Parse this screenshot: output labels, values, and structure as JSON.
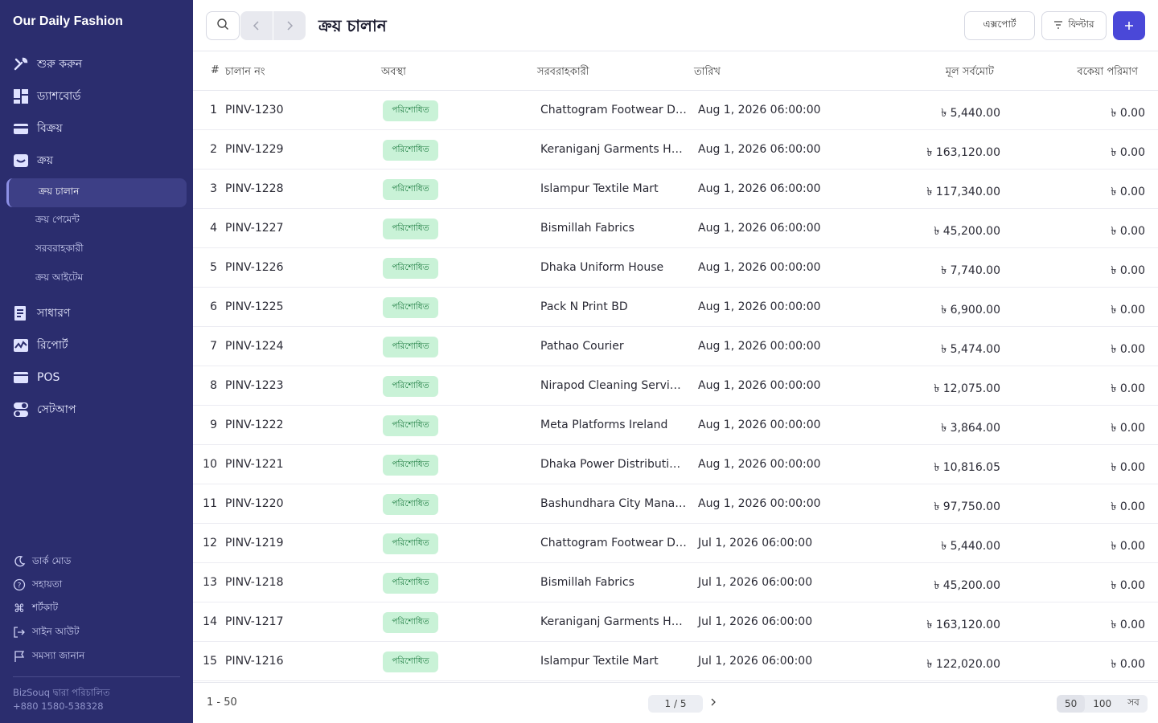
{
  "sidebar": {
    "brand": "Our Daily Fashion",
    "items": [
      {
        "label": "শুরু করুন",
        "icon": "tools-icon"
      },
      {
        "label": "ড্যাশবোর্ড",
        "icon": "dashboard-icon"
      },
      {
        "label": "বিক্রয়",
        "icon": "card-icon"
      },
      {
        "label": "ক্রয়",
        "icon": "inbox-icon"
      },
      {
        "label": "সাধারণ",
        "icon": "ledger-icon"
      },
      {
        "label": "রিপোর্ট",
        "icon": "chart-icon"
      },
      {
        "label": "POS",
        "icon": "pos-icon"
      },
      {
        "label": "সেটআপ",
        "icon": "toggle-icon"
      }
    ],
    "sub_items": [
      {
        "label": "ক্রয় চালান",
        "active": true
      },
      {
        "label": "ক্রয় পেমেন্ট"
      },
      {
        "label": "সরবরাহকারী"
      },
      {
        "label": "ক্রয় আইটেম"
      }
    ],
    "bottom": [
      {
        "label": "ডার্ক মোড",
        "icon": "moon-icon"
      },
      {
        "label": "সহায়তা",
        "icon": "help-icon"
      },
      {
        "label": "শর্টকাট",
        "icon": "command-icon"
      },
      {
        "label": "সাইন আউট",
        "icon": "logout-icon"
      },
      {
        "label": "সমস্যা জানান",
        "icon": "flag-icon"
      }
    ],
    "footer_line1": "BizSouq দ্বারা পরিচালিত",
    "footer_line2": "+880 1580-538328"
  },
  "header": {
    "title": "ক্রয় চালান",
    "export_label": "এক্সপোর্ট",
    "filter_label": "ফিল্টার",
    "add_label": "+",
    "accent_color": "#4a48d8"
  },
  "table": {
    "columns": [
      "#",
      "চালান নং",
      "অবস্থা",
      "সরবরাহকারী",
      "তারিখ",
      "মূল সর্বমোট",
      "বকেয়া পরিমাণ"
    ],
    "status_color": "#c9f2d7",
    "rows": [
      {
        "n": "1",
        "inv": "PINV-1230",
        "status": "পরিশোধিত",
        "supplier": "Chattogram Footwear De...",
        "date": "Aug 1, 2026 06:00:00",
        "total": "৳ 5,440.00",
        "due": "৳ 0.00"
      },
      {
        "n": "2",
        "inv": "PINV-1229",
        "status": "পরিশোধিত",
        "supplier": "Keraniganj Garments Hou...",
        "date": "Aug 1, 2026 06:00:00",
        "total": "৳ 163,120.00",
        "due": "৳ 0.00"
      },
      {
        "n": "3",
        "inv": "PINV-1228",
        "status": "পরিশোধিত",
        "supplier": "Islampur Textile Mart",
        "date": "Aug 1, 2026 06:00:00",
        "total": "৳ 117,340.00",
        "due": "৳ 0.00"
      },
      {
        "n": "4",
        "inv": "PINV-1227",
        "status": "পরিশোধিত",
        "supplier": "Bismillah Fabrics",
        "date": "Aug 1, 2026 06:00:00",
        "total": "৳ 45,200.00",
        "due": "৳ 0.00"
      },
      {
        "n": "5",
        "inv": "PINV-1226",
        "status": "পরিশোধিত",
        "supplier": "Dhaka Uniform House",
        "date": "Aug 1, 2026 00:00:00",
        "total": "৳ 7,740.00",
        "due": "৳ 0.00"
      },
      {
        "n": "6",
        "inv": "PINV-1225",
        "status": "পরিশোধিত",
        "supplier": "Pack N Print BD",
        "date": "Aug 1, 2026 00:00:00",
        "total": "৳ 6,900.00",
        "due": "৳ 0.00"
      },
      {
        "n": "7",
        "inv": "PINV-1224",
        "status": "পরিশোধিত",
        "supplier": "Pathao Courier",
        "date": "Aug 1, 2026 00:00:00",
        "total": "৳ 5,474.00",
        "due": "৳ 0.00"
      },
      {
        "n": "8",
        "inv": "PINV-1223",
        "status": "পরিশোধিত",
        "supplier": "Nirapod Cleaning Services",
        "date": "Aug 1, 2026 00:00:00",
        "total": "৳ 12,075.00",
        "due": "৳ 0.00"
      },
      {
        "n": "9",
        "inv": "PINV-1222",
        "status": "পরিশোধিত",
        "supplier": "Meta Platforms Ireland",
        "date": "Aug 1, 2026 00:00:00",
        "total": "৳ 3,864.00",
        "due": "৳ 0.00"
      },
      {
        "n": "10",
        "inv": "PINV-1221",
        "status": "পরিশোধিত",
        "supplier": "Dhaka Power Distribution...",
        "date": "Aug 1, 2026 00:00:00",
        "total": "৳ 10,816.05",
        "due": "৳ 0.00"
      },
      {
        "n": "11",
        "inv": "PINV-1220",
        "status": "পরিশোধিত",
        "supplier": "Bashundhara City Manag...",
        "date": "Aug 1, 2026 00:00:00",
        "total": "৳ 97,750.00",
        "due": "৳ 0.00"
      },
      {
        "n": "12",
        "inv": "PINV-1219",
        "status": "পরিশোধিত",
        "supplier": "Chattogram Footwear De...",
        "date": "Jul 1, 2026 06:00:00",
        "total": "৳ 5,440.00",
        "due": "৳ 0.00"
      },
      {
        "n": "13",
        "inv": "PINV-1218",
        "status": "পরিশোধিত",
        "supplier": "Bismillah Fabrics",
        "date": "Jul 1, 2026 06:00:00",
        "total": "৳ 45,200.00",
        "due": "৳ 0.00"
      },
      {
        "n": "14",
        "inv": "PINV-1217",
        "status": "পরিশোধিত",
        "supplier": "Keraniganj Garments Hou...",
        "date": "Jul 1, 2026 06:00:00",
        "total": "৳ 163,120.00",
        "due": "৳ 0.00"
      },
      {
        "n": "15",
        "inv": "PINV-1216",
        "status": "পরিশোধিত",
        "supplier": "Islampur Textile Mart",
        "date": "Jul 1, 2026 06:00:00",
        "total": "৳ 122,020.00",
        "due": "৳ 0.00"
      }
    ]
  },
  "pagination": {
    "range": "1 - 50",
    "page": "1 / 5",
    "sizes": [
      "50",
      "100",
      "সব"
    ],
    "selected_size": "50"
  }
}
